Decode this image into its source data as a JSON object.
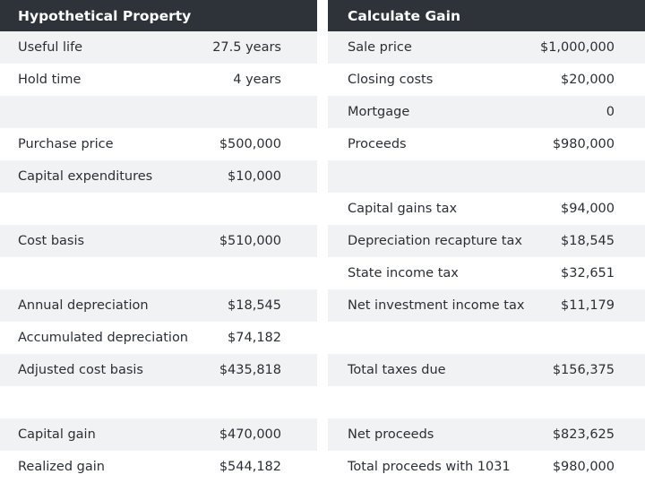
{
  "left": {
    "title": "Hypothetical Property",
    "rows": [
      {
        "label": "Useful life",
        "value": "27.5 years"
      },
      {
        "label": "Hold time",
        "value": "4 years"
      },
      {
        "label": "",
        "value": ""
      },
      {
        "label": "Purchase price",
        "value": "$500,000"
      },
      {
        "label": "Capital expenditures",
        "value": "$10,000"
      },
      {
        "label": "",
        "value": ""
      },
      {
        "label": "Cost basis",
        "value": "$510,000"
      },
      {
        "label": "",
        "value": ""
      },
      {
        "label": "Annual depreciation",
        "value": "$18,545"
      },
      {
        "label": "Accumulated depreciation",
        "value": "$74,182"
      },
      {
        "label": "Adjusted cost basis",
        "value": "$435,818"
      },
      {
        "label": "",
        "value": ""
      },
      {
        "label": "Capital gain",
        "value": "$470,000"
      },
      {
        "label": "Realized gain",
        "value": "$544,182"
      }
    ]
  },
  "right": {
    "title": "Calculate Gain",
    "rows": [
      {
        "label": "Sale price",
        "value": "$1,000,000"
      },
      {
        "label": "Closing costs",
        "value": "$20,000"
      },
      {
        "label": "Mortgage",
        "value": "0"
      },
      {
        "label": "Proceeds",
        "value": "$980,000"
      },
      {
        "label": "",
        "value": ""
      },
      {
        "label": "Capital gains tax",
        "value": "$94,000"
      },
      {
        "label": "Depreciation recapture tax",
        "value": "$18,545"
      },
      {
        "label": "State income tax",
        "value": "$32,651"
      },
      {
        "label": "Net investment income tax",
        "value": "$11,179"
      },
      {
        "label": "",
        "value": ""
      },
      {
        "label": "Total taxes due",
        "value": "$156,375"
      },
      {
        "label": "",
        "value": ""
      },
      {
        "label": "Net proceeds",
        "value": "$823,625"
      },
      {
        "label": "Total proceeds with 1031",
        "value": "$980,000"
      }
    ]
  }
}
